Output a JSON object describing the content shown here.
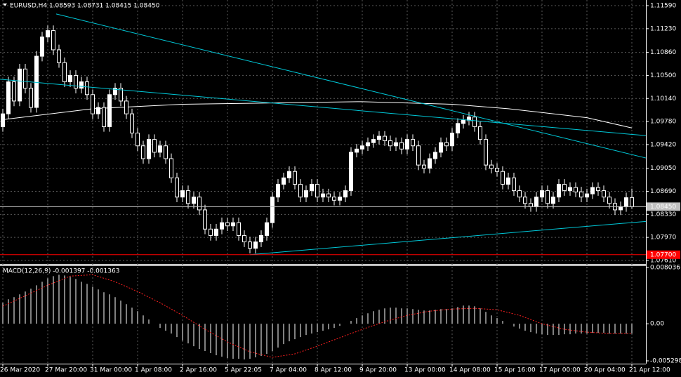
{
  "chart_data": [
    {
      "type": "candlestick",
      "title": "EURUSD,H4  1.08593 1.08731 1.08415 1.08450",
      "categories": [
        "26 Mar 2020",
        null,
        null,
        null,
        null,
        null,
        null,
        null,
        "27 Mar 20:00",
        null,
        null,
        null,
        null,
        null,
        null,
        null,
        "31 Mar 00:00",
        null,
        null,
        null,
        null,
        null,
        null,
        null,
        "1 Apr 08:00",
        null,
        null,
        null,
        null,
        null,
        null,
        null,
        "2 Apr 16:00",
        null,
        null,
        null,
        null,
        null,
        null,
        null,
        "5 Apr 22:05",
        null,
        null,
        null,
        null,
        null,
        null,
        null,
        "7 Apr 04:00",
        null,
        null,
        null,
        null,
        null,
        null,
        null,
        "8 Apr 12:00",
        null,
        null,
        null,
        null,
        null,
        null,
        null,
        "9 Apr 20:00",
        null,
        null,
        null,
        null,
        null,
        null,
        null,
        "13 Apr 00:00",
        null,
        null,
        null,
        null,
        null,
        null,
        null,
        "14 Apr 08:00",
        null,
        null,
        null,
        null,
        null,
        null,
        null,
        "15 Apr 16:00",
        null,
        null,
        null,
        null,
        null,
        null,
        null,
        "17 Apr 00:00",
        null,
        null,
        null,
        null,
        null,
        null,
        null,
        "20 Apr 04:00",
        null,
        null,
        null,
        null,
        null,
        null,
        null,
        "21 Apr 12:00"
      ],
      "open": [
        1.097,
        1.099,
        1.104,
        1.101,
        1.106,
        1.103,
        1.1,
        1.108,
        1.111,
        1.112,
        1.109,
        1.107,
        1.104,
        1.105,
        1.103,
        1.104,
        1.102,
        1.099,
        1.1,
        1.097,
        1.102,
        1.103,
        1.101,
        1.099,
        1.096,
        1.094,
        1.092,
        1.095,
        1.093,
        1.094,
        1.092,
        1.089,
        1.086,
        1.087,
        1.085,
        1.086,
        1.084,
        1.081,
        1.08,
        1.081,
        1.082,
        1.0815,
        1.082,
        1.08,
        1.079,
        1.078,
        1.079,
        1.08,
        1.082,
        1.086,
        1.088,
        1.089,
        1.09,
        1.088,
        1.086,
        1.087,
        1.088,
        1.086,
        1.0865,
        1.086,
        1.0855,
        1.086,
        1.087,
        1.093,
        1.0935,
        1.094,
        1.0945,
        1.095,
        1.0955,
        1.0948,
        1.094,
        1.0945,
        1.0935,
        1.095,
        1.094,
        1.091,
        1.0905,
        1.092,
        1.093,
        1.0945,
        1.094,
        1.096,
        1.0975,
        1.098,
        1.0985,
        1.097,
        1.095,
        1.091,
        1.0905,
        1.09,
        1.088,
        1.089,
        1.087,
        1.086,
        1.085,
        1.0845,
        1.086,
        1.087,
        1.085,
        1.086,
        1.088,
        1.087,
        1.0875,
        1.0868,
        1.086,
        1.0865,
        1.0875,
        1.087,
        1.086,
        1.085,
        1.084,
        1.0845,
        1.08593
      ],
      "high": [
        1.0998,
        1.1048,
        1.1048,
        1.1068,
        1.1068,
        1.1038,
        1.1088,
        1.1118,
        1.1128,
        1.1128,
        1.1098,
        1.1078,
        1.1058,
        1.1058,
        1.1048,
        1.1048,
        1.1028,
        1.1008,
        1.1008,
        1.1028,
        1.1038,
        1.1038,
        1.1018,
        1.0998,
        1.0968,
        1.0948,
        1.0958,
        1.0958,
        1.0948,
        1.0948,
        1.0928,
        1.0898,
        1.0878,
        1.0878,
        1.0868,
        1.0868,
        1.0848,
        1.0818,
        1.0818,
        1.0828,
        1.0828,
        1.0828,
        1.0828,
        1.0808,
        1.0798,
        1.0798,
        1.0808,
        1.0828,
        1.0868,
        1.0888,
        1.0898,
        1.0908,
        1.0908,
        1.0888,
        1.0878,
        1.0888,
        1.0888,
        1.0873,
        1.0873,
        1.0868,
        1.0868,
        1.0878,
        1.0938,
        1.0943,
        1.0948,
        1.0953,
        1.0958,
        1.0963,
        1.0963,
        1.0956,
        1.0953,
        1.0953,
        1.0958,
        1.0958,
        1.0948,
        1.0918,
        1.0928,
        1.0938,
        1.0953,
        1.0953,
        1.0968,
        1.0983,
        1.0988,
        1.0993,
        1.0993,
        1.0978,
        1.0958,
        1.0918,
        1.0913,
        1.0908,
        1.0898,
        1.0898,
        1.0878,
        1.0868,
        1.0858,
        1.0868,
        1.0878,
        1.0878,
        1.0868,
        1.0888,
        1.0888,
        1.0883,
        1.0883,
        1.0876,
        1.0873,
        1.0883,
        1.0883,
        1.0878,
        1.0868,
        1.0858,
        1.0853,
        1.0867,
        1.08731
      ],
      "low": [
        1.0962,
        1.0982,
        1.1002,
        1.1002,
        1.1022,
        1.0992,
        1.0992,
        1.1072,
        1.1102,
        1.1082,
        1.1062,
        1.1032,
        1.1032,
        1.1022,
        1.1022,
        1.1012,
        1.0982,
        1.0982,
        1.0962,
        1.0962,
        1.1012,
        1.1002,
        1.0982,
        1.0952,
        1.0932,
        1.0912,
        1.0912,
        1.0922,
        1.0922,
        1.0912,
        1.0882,
        1.0852,
        1.0852,
        1.0842,
        1.0842,
        1.0832,
        1.0802,
        1.0792,
        1.0792,
        1.0802,
        1.0807,
        1.0807,
        1.0792,
        1.0782,
        1.0772,
        1.0772,
        1.0782,
        1.0792,
        1.0812,
        1.0852,
        1.0872,
        1.0882,
        1.0872,
        1.0852,
        1.0852,
        1.0862,
        1.0852,
        1.0852,
        1.0852,
        1.0847,
        1.0847,
        1.0852,
        1.0862,
        1.0922,
        1.0927,
        1.0932,
        1.0937,
        1.0942,
        1.094,
        1.0932,
        1.0932,
        1.0927,
        1.0927,
        1.0932,
        1.0902,
        1.0897,
        1.0897,
        1.0912,
        1.0922,
        1.0932,
        1.0932,
        1.0952,
        1.0967,
        1.0972,
        1.0962,
        1.0942,
        1.0902,
        1.0897,
        1.0892,
        1.0872,
        1.0872,
        1.0862,
        1.0852,
        1.0842,
        1.0837,
        1.0837,
        1.0852,
        1.0842,
        1.0842,
        1.0852,
        1.0862,
        1.0862,
        1.086,
        1.0852,
        1.0852,
        1.0857,
        1.0862,
        1.0852,
        1.0842,
        1.0832,
        1.0832,
        1.0837,
        1.08415
      ],
      "close": [
        1.099,
        1.104,
        1.101,
        1.106,
        1.103,
        1.1,
        1.108,
        1.111,
        1.112,
        1.109,
        1.107,
        1.104,
        1.105,
        1.103,
        1.104,
        1.102,
        1.099,
        1.1,
        1.097,
        1.102,
        1.103,
        1.101,
        1.099,
        1.096,
        1.094,
        1.092,
        1.095,
        1.093,
        1.094,
        1.092,
        1.089,
        1.086,
        1.087,
        1.085,
        1.086,
        1.084,
        1.081,
        1.08,
        1.081,
        1.082,
        1.0815,
        1.082,
        1.08,
        1.079,
        1.078,
        1.079,
        1.08,
        1.082,
        1.086,
        1.088,
        1.089,
        1.09,
        1.088,
        1.086,
        1.087,
        1.088,
        1.086,
        1.0865,
        1.086,
        1.0855,
        1.086,
        1.087,
        1.093,
        1.0935,
        1.094,
        1.0945,
        1.095,
        1.0955,
        1.0948,
        1.094,
        1.0945,
        1.0935,
        1.095,
        1.094,
        1.091,
        1.0905,
        1.092,
        1.093,
        1.0945,
        1.094,
        1.096,
        1.0975,
        1.098,
        1.0985,
        1.097,
        1.095,
        1.091,
        1.0905,
        1.09,
        1.088,
        1.089,
        1.087,
        1.086,
        1.085,
        1.0845,
        1.086,
        1.087,
        1.085,
        1.086,
        1.088,
        1.087,
        1.0875,
        1.0868,
        1.086,
        1.0865,
        1.0875,
        1.087,
        1.086,
        1.085,
        1.084,
        1.0845,
        1.0859,
        1.0845
      ],
      "ma": {
        "x": [
          0,
          16,
          32,
          48,
          64,
          80,
          90,
          104,
          112
        ],
        "values": [
          1.0981,
          1.0998,
          1.1005,
          1.1007,
          1.1009,
          1.1005,
          1.0998,
          1.0984,
          1.0968
        ],
        "color": "#ffffff"
      },
      "trendlines": [
        {
          "x": [
            9.5,
            114.5
          ],
          "values": [
            1.1146,
            1.0921
          ]
        },
        {
          "x": [
            -0.5,
            114.5
          ],
          "values": [
            1.1044,
            1.0956
          ]
        },
        {
          "x": [
            44,
            114.5
          ],
          "values": [
            1.077,
            1.0822
          ]
        }
      ],
      "trend_color": "#00c8d8",
      "hlines": [
        {
          "value": 1.0845,
          "label": "1.08450",
          "color": "#c0c0c0",
          "text_color": "#000000"
        },
        {
          "value": 1.077,
          "label": "1.07700",
          "color": "#ff0000",
          "text_color": "#ffffff"
        }
      ],
      "ylim": [
        1.07555,
        1.11678
      ],
      "yticks": [
        {
          "value": 1.1159,
          "label": "1.11590"
        },
        {
          "value": 1.1123,
          "label": "1.11230"
        },
        {
          "value": 1.1086,
          "label": "1.10860"
        },
        {
          "value": 1.105,
          "label": "1.10500"
        },
        {
          "value": 1.1014,
          "label": "1.10140"
        },
        {
          "value": 1.0978,
          "label": "1.09780"
        },
        {
          "value": 1.0942,
          "label": "1.09420"
        },
        {
          "value": 1.0905,
          "label": "1.09050"
        },
        {
          "value": 1.0869,
          "label": "1.08690"
        },
        {
          "value": 1.0833,
          "label": "1.08330"
        },
        {
          "value": 1.0797,
          "label": "1.07970"
        },
        {
          "value": 1.0761,
          "label": "1.07610"
        }
      ],
      "grid": true
    },
    {
      "type": "macd",
      "title": "MACD(12,26,9) -0.001397 -0.001363",
      "histogram": {
        "color": "#ffffff",
        "values": [
          0.003,
          0.0035,
          0.0038,
          0.0042,
          0.0046,
          0.005,
          0.0055,
          0.006,
          0.0065,
          0.0068,
          0.007,
          0.0069,
          0.0067,
          0.0064,
          0.006,
          0.0057,
          0.0053,
          0.0049,
          0.0045,
          0.0042,
          0.0038,
          0.0033,
          0.0028,
          0.0023,
          0.0018,
          0.0012,
          0.0006,
          0,
          -0.0006,
          -0.001,
          -0.0014,
          -0.0019,
          -0.0024,
          -0.0028,
          -0.0032,
          -0.0036,
          -0.0039,
          -0.0042,
          -0.0045,
          -0.0047,
          -0.0049,
          -0.005,
          -0.005,
          -0.0051,
          -0.005,
          -0.0048,
          -0.0046,
          -0.0043,
          -0.0039,
          -0.0034,
          -0.0029,
          -0.0025,
          -0.0022,
          -0.0019,
          -0.0016,
          -0.0014,
          -0.0012,
          -0.001,
          -0.0008,
          -0.0006,
          -0.0003,
          0,
          0.0004,
          0.0008,
          0.0012,
          0.0015,
          0.0018,
          0.002,
          0.0022,
          0.0023,
          0.0023,
          0.0022,
          0.0022,
          0.0021,
          0.002,
          0.0019,
          0.0019,
          0.002,
          0.0021,
          0.0021,
          0.0022,
          0.0024,
          0.0026,
          0.0026,
          0.0025,
          0.0022,
          0.0017,
          0.0012,
          0.0008,
          0.0004,
          0,
          -0.0004,
          -0.0007,
          -0.001,
          -0.0012,
          -0.0014,
          -0.0015,
          -0.0016,
          -0.0016,
          -0.0016,
          -0.0015,
          -0.0015,
          -0.0014,
          -0.0014,
          -0.0014,
          -0.0013,
          -0.0013,
          -0.0013,
          -0.0014,
          -0.0014,
          -0.0014,
          -0.0014,
          -0.001397
        ]
      },
      "signal": {
        "color": "#ff2020",
        "x": [
          0,
          4,
          8,
          12,
          16,
          20,
          24,
          28,
          32,
          36,
          40,
          44,
          48,
          52,
          56,
          60,
          64,
          68,
          72,
          76,
          80,
          84,
          88,
          92,
          96,
          100,
          104,
          108,
          112
        ],
        "values": [
          0.0025,
          0.004,
          0.0055,
          0.0068,
          0.007,
          0.006,
          0.0046,
          0.003,
          0.0012,
          -0.0008,
          -0.0026,
          -0.004,
          -0.0048,
          -0.0043,
          -0.0032,
          -0.002,
          -0.0008,
          0.0003,
          0.0012,
          0.0018,
          0.0021,
          0.0022,
          0.002,
          0.0012,
          0,
          -0.0008,
          -0.0012,
          -0.0014,
          -0.001363
        ]
      },
      "ylim": [
        -0.0057,
        0.00834
      ],
      "yticks": [
        {
          "value": 0.008036,
          "label": "0.008036"
        },
        {
          "value": 0,
          "label": "0.00"
        },
        {
          "value": -0.005298,
          "label": "-0.005298"
        }
      ]
    }
  ]
}
